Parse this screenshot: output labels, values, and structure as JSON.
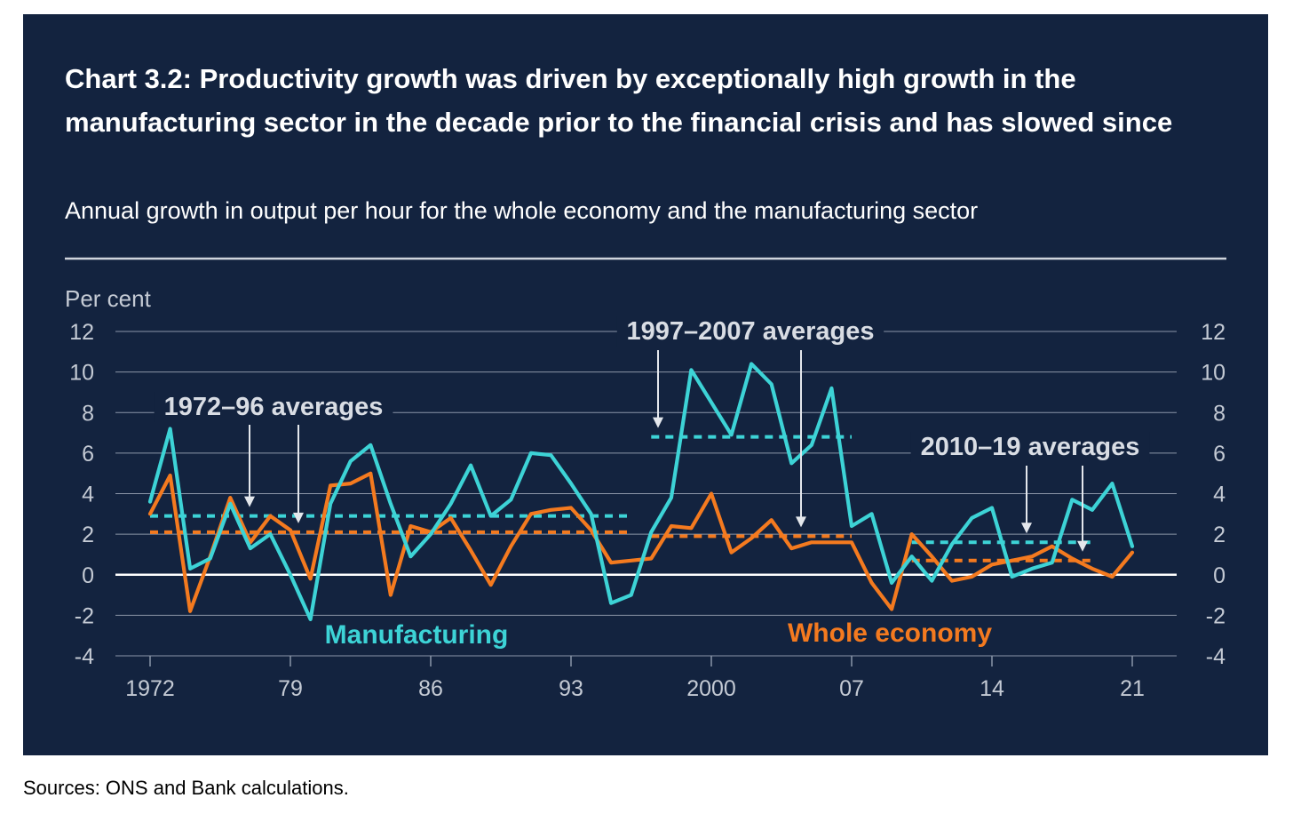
{
  "title": "Chart 3.2: Productivity growth was driven by exceptionally high growth in the manufacturing sector in the decade prior to the financial crisis and has slowed since",
  "subtitle": "Annual growth in output per hour for the whole economy and the manufacturing sector",
  "source": "Sources: ONS and Bank calculations.",
  "colors": {
    "background": "#13233f",
    "manufacturing": "#3dd3d6",
    "whole_economy": "#f47a1f",
    "grid": "#8b96a8",
    "zero_line": "#ffffff",
    "text": "#c4cad4"
  },
  "chart_data": {
    "type": "line",
    "ylabel": "Per cent",
    "ylim": [
      -4,
      12
    ],
    "yticks": [
      12,
      10,
      8,
      6,
      4,
      2,
      0,
      -2,
      -4
    ],
    "xlim": [
      1972,
      2021
    ],
    "xticks": [
      {
        "value": 1972,
        "label": "1972"
      },
      {
        "value": 1979,
        "label": "79"
      },
      {
        "value": 1986,
        "label": "86"
      },
      {
        "value": 1993,
        "label": "93"
      },
      {
        "value": 2000,
        "label": "2000"
      },
      {
        "value": 2007,
        "label": "07"
      },
      {
        "value": 2014,
        "label": "14"
      },
      {
        "value": 2021,
        "label": "21"
      }
    ],
    "grid": true,
    "x": [
      1972,
      1973,
      1974,
      1975,
      1976,
      1977,
      1978,
      1979,
      1980,
      1981,
      1982,
      1983,
      1984,
      1985,
      1986,
      1987,
      1988,
      1989,
      1990,
      1991,
      1992,
      1993,
      1994,
      1995,
      1996,
      1997,
      1998,
      1999,
      2000,
      2001,
      2002,
      2003,
      2004,
      2005,
      2006,
      2007,
      2008,
      2009,
      2010,
      2011,
      2012,
      2013,
      2014,
      2015,
      2016,
      2017,
      2018,
      2019,
      2020,
      2021
    ],
    "series": [
      {
        "name": "Manufacturing",
        "color": "#3dd3d6",
        "values": [
          3.6,
          7.2,
          0.3,
          0.8,
          3.5,
          1.3,
          2.0,
          0.0,
          -2.2,
          3.5,
          5.6,
          6.4,
          3.5,
          0.9,
          2.0,
          3.5,
          5.4,
          2.9,
          3.7,
          6.0,
          5.9,
          4.5,
          3.0,
          -1.4,
          -1.0,
          2.1,
          3.8,
          10.1,
          8.5,
          6.9,
          10.4,
          9.4,
          5.5,
          6.4,
          9.2,
          2.4,
          3.0,
          -0.4,
          0.9,
          -0.3,
          1.5,
          2.8,
          3.3,
          -0.1,
          0.3,
          0.6,
          3.7,
          3.2,
          4.5,
          1.4
        ]
      },
      {
        "name": "Whole economy",
        "color": "#f47a1f",
        "values": [
          3.0,
          4.9,
          -1.8,
          0.9,
          3.8,
          1.6,
          2.9,
          2.2,
          -0.2,
          4.4,
          4.5,
          5.0,
          -1.0,
          2.4,
          2.1,
          2.8,
          1.2,
          -0.5,
          1.4,
          3.0,
          3.2,
          3.3,
          2.2,
          0.6,
          0.7,
          0.8,
          2.4,
          2.3,
          4.0,
          1.1,
          1.8,
          2.7,
          1.3,
          1.6,
          1.6,
          1.6,
          -0.4,
          -1.7,
          2.0,
          0.9,
          -0.3,
          -0.1,
          0.5,
          0.7,
          0.9,
          1.4,
          0.8,
          0.3,
          -0.1,
          1.1
        ]
      }
    ],
    "averages": [
      {
        "label": "1972–96 averages",
        "from": 1972,
        "to": 1996,
        "manufacturing": 2.9,
        "whole_economy": 2.1
      },
      {
        "label": "1997–2007 averages",
        "from": 1997,
        "to": 2007,
        "manufacturing": 6.8,
        "whole_economy": 1.9
      },
      {
        "label": "2010–19 averages",
        "from": 2010,
        "to": 2019,
        "manufacturing": 1.6,
        "whole_economy": 0.7
      }
    ]
  }
}
